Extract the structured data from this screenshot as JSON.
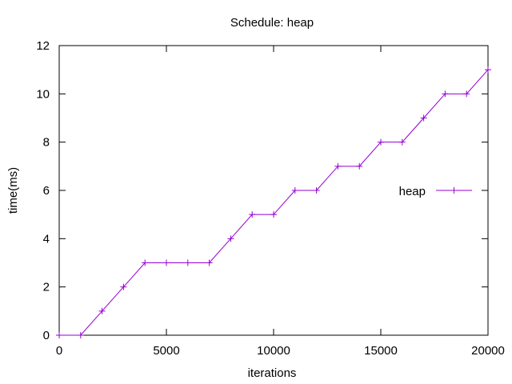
{
  "chart_data": {
    "type": "line",
    "title": "Schedule: heap",
    "xlabel": "iterations",
    "ylabel": "time(ms)",
    "xlim": [
      0,
      20000
    ],
    "ylim": [
      0,
      12
    ],
    "xticks": [
      0,
      5000,
      10000,
      15000,
      20000
    ],
    "yticks": [
      0,
      2,
      4,
      6,
      8,
      10,
      12
    ],
    "grid": false,
    "legend_position": "right",
    "series": [
      {
        "name": "heap",
        "color": "#9400d3",
        "marker": "plus",
        "x": [
          0,
          1000,
          2000,
          3000,
          4000,
          5000,
          6000,
          7000,
          8000,
          9000,
          10000,
          11000,
          12000,
          13000,
          14000,
          15000,
          16000,
          17000,
          18000,
          19000,
          20000
        ],
        "y": [
          0,
          0,
          1,
          2,
          3,
          3,
          3,
          3,
          4,
          5,
          5,
          6,
          6,
          7,
          7,
          8,
          8,
          9,
          10,
          10,
          11
        ]
      }
    ]
  }
}
